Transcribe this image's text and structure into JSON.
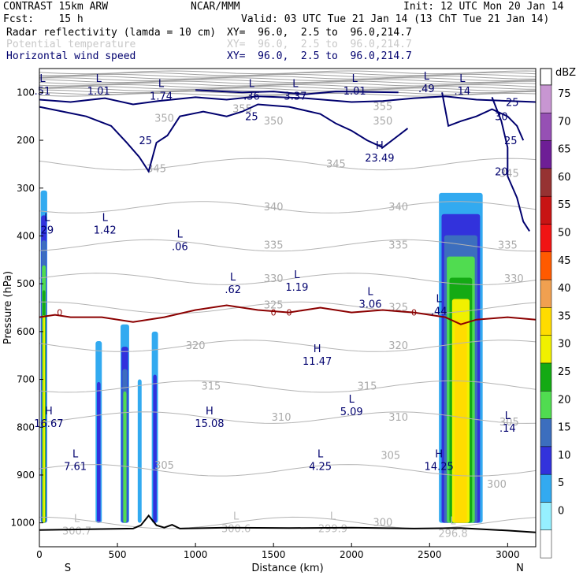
{
  "header": {
    "model": "CONTRAST 15km ARW",
    "org": "NCAR/MMM",
    "init": "Init: 12 UTC Mon 20 Jan 14",
    "fcst": "Fcst:    15 h",
    "valid": "Valid: 03 UTC Tue 21 Jan 14 (13 ChT Tue 21 Jan 14)",
    "fields": [
      {
        "name": "Radar reflectivity (lamda = 10 cm)",
        "xy": "XY=  96.0,  2.5 to  96.0,214.7",
        "color": "#000000"
      },
      {
        "name": "Potential temperature",
        "xy": "XY=  96.0,  2.5 to  96.0,214.7",
        "color": "#c8c8c8"
      },
      {
        "name": "Horizontal wind speed",
        "xy": "XY=  96.0,  2.5 to  96.0,214.7",
        "color": "#00006e"
      }
    ]
  },
  "chart_data": {
    "type": "heatmap",
    "subtype": "vertical cross-section",
    "xlabel": "Distance (km)",
    "ylabel": "Pressure (hPa)",
    "xlim": [
      0,
      3180
    ],
    "ylim": [
      1050,
      50
    ],
    "xticks": [
      0,
      500,
      1000,
      1500,
      2000,
      2500,
      3000
    ],
    "yticks": [
      100,
      200,
      300,
      400,
      500,
      600,
      700,
      800,
      900,
      1000
    ],
    "x_end_labels": {
      "left": "S",
      "right": "N"
    },
    "colorbar": {
      "unit": "dBZ",
      "levels": [
        75,
        70,
        65,
        60,
        55,
        50,
        45,
        40,
        35,
        30,
        25,
        20,
        15,
        10,
        5,
        0
      ],
      "colors": [
        "#c896d2",
        "#9650b4",
        "#6e1e96",
        "#963232",
        "#c81414",
        "#f01414",
        "#ff5a00",
        "#f0a050",
        "#ffdc00",
        "#f0f000",
        "#14aa14",
        "#50dc50",
        "#3c6ebe",
        "#3232dc",
        "#32aaf0",
        "#96f0ff",
        "#ffffff"
      ]
    },
    "reflectivity_cells": [
      {
        "x0": 8,
        "x1": 50,
        "ptop": 305,
        "pbottom": 1000,
        "max_dbz": 30
      },
      {
        "x0": 360,
        "x1": 400,
        "ptop": 620,
        "pbottom": 1000,
        "max_dbz": 10
      },
      {
        "x0": 520,
        "x1": 575,
        "ptop": 585,
        "pbottom": 1000,
        "max_dbz": 20
      },
      {
        "x0": 630,
        "x1": 655,
        "ptop": 700,
        "pbottom": 1000,
        "max_dbz": 5
      },
      {
        "x0": 720,
        "x1": 760,
        "ptop": 600,
        "pbottom": 1000,
        "max_dbz": 10
      },
      {
        "x0": 2560,
        "x1": 2840,
        "ptop": 310,
        "pbottom": 1000,
        "max_dbz": 35
      }
    ],
    "isotherm_labels": [
      {
        "text": "345",
        "x": 1900,
        "p": 250
      },
      {
        "text": "340",
        "x": 1500,
        "p": 340
      },
      {
        "text": "340",
        "x": 2300,
        "p": 340
      },
      {
        "text": "335",
        "x": 1500,
        "p": 420
      },
      {
        "text": "335",
        "x": 2300,
        "p": 420
      },
      {
        "text": "330",
        "x": 1500,
        "p": 490
      },
      {
        "text": "325",
        "x": 1500,
        "p": 545
      },
      {
        "text": "325",
        "x": 2300,
        "p": 550
      },
      {
        "text": "320",
        "x": 1000,
        "p": 630
      },
      {
        "text": "320",
        "x": 2300,
        "p": 630
      },
      {
        "text": "315",
        "x": 1100,
        "p": 715
      },
      {
        "text": "315",
        "x": 2100,
        "p": 715
      },
      {
        "text": "310",
        "x": 1550,
        "p": 780
      },
      {
        "text": "310",
        "x": 2300,
        "p": 780
      },
      {
        "text": "305",
        "x": 800,
        "p": 880
      },
      {
        "text": "305",
        "x": 2250,
        "p": 860
      },
      {
        "text": "300",
        "x": 2200,
        "p": 1000
      },
      {
        "text": "355",
        "x": 1300,
        "p": 135
      },
      {
        "text": "350",
        "x": 800,
        "p": 155
      },
      {
        "text": "350",
        "x": 1500,
        "p": 160
      },
      {
        "text": "355",
        "x": 2200,
        "p": 130
      },
      {
        "text": "350",
        "x": 2200,
        "p": 160
      },
      {
        "text": "345",
        "x": 750,
        "p": 260
      },
      {
        "text": "345",
        "x": 3010,
        "p": 270
      },
      {
        "text": "335",
        "x": 3000,
        "p": 420
      },
      {
        "text": "330",
        "x": 3040,
        "p": 490
      },
      {
        "text": "305",
        "x": 3010,
        "p": 790
      },
      {
        "text": "300",
        "x": 2930,
        "p": 920
      }
    ],
    "wind_labels": [
      {
        "text": "25",
        "x": 680,
        "p": 200
      },
      {
        "text": "25",
        "x": 1360,
        "p": 150
      },
      {
        "text": "25",
        "x": 3030,
        "p": 120
      },
      {
        "text": "30",
        "x": 2960,
        "p": 150
      },
      {
        "text": "25",
        "x": 3020,
        "p": 200
      },
      {
        "text": "20",
        "x": 2960,
        "p": 265
      }
    ],
    "freezing_level": {
      "label": "0",
      "x": [
        0,
        100,
        200,
        400,
        600,
        800,
        1000,
        1200,
        1400,
        1600,
        1800,
        2000,
        2200,
        2400,
        2600,
        2700,
        2800,
        3000,
        3180
      ],
      "p": [
        570,
        565,
        570,
        570,
        580,
        570,
        555,
        545,
        555,
        560,
        550,
        560,
        555,
        560,
        570,
        585,
        575,
        570,
        575
      ]
    },
    "minmax_labels": [
      {
        "kind": "L",
        "value": ".51",
        "x": 20,
        "p": 85
      },
      {
        "kind": "L",
        "value": "1.01",
        "x": 380,
        "p": 85
      },
      {
        "kind": "L",
        "value": "1.74",
        "x": 780,
        "p": 95
      },
      {
        "kind": "L",
        "value": ".36",
        "x": 1360,
        "p": 95
      },
      {
        "kind": "L",
        "value": "3.37",
        "x": 1640,
        "p": 95
      },
      {
        "kind": "L",
        "value": "1.01",
        "x": 2020,
        "p": 85
      },
      {
        "kind": "L",
        "value": ".49",
        "x": 2480,
        "p": 80
      },
      {
        "kind": "L",
        "value": ".14",
        "x": 2710,
        "p": 85
      },
      {
        "kind": "H",
        "value": "23.49",
        "x": 2180,
        "p": 225
      },
      {
        "kind": "L",
        "value": "29",
        "x": 50,
        "p": 375
      },
      {
        "kind": "L",
        "value": "1.42",
        "x": 420,
        "p": 375
      },
      {
        "kind": "L",
        "value": ".06",
        "x": 900,
        "p": 410
      },
      {
        "kind": "L",
        "value": ".62",
        "x": 1240,
        "p": 500
      },
      {
        "kind": "L",
        "value": "1.19",
        "x": 1650,
        "p": 495
      },
      {
        "kind": "L",
        "value": "3.06",
        "x": 2120,
        "p": 530
      },
      {
        "kind": "L",
        "value": ".44",
        "x": 2560,
        "p": 545
      },
      {
        "kind": "H",
        "value": "11.47",
        "x": 1780,
        "p": 650
      },
      {
        "kind": "L",
        "value": "5.09",
        "x": 2000,
        "p": 755
      },
      {
        "kind": "H",
        "value": "16.67",
        "x": 60,
        "p": 780
      },
      {
        "kind": "H",
        "value": "15.08",
        "x": 1090,
        "p": 780
      },
      {
        "kind": "L",
        "value": ".14",
        "x": 3000,
        "p": 790
      },
      {
        "kind": "L",
        "value": "7.61",
        "x": 230,
        "p": 870
      },
      {
        "kind": "L",
        "value": "4.25",
        "x": 1800,
        "p": 870
      },
      {
        "kind": "H",
        "value": "14.25",
        "x": 2560,
        "p": 870
      },
      {
        "kind": "L",
        "value": "300.7",
        "x": 240,
        "p": 1005
      },
      {
        "kind": "L",
        "value": "300.6",
        "x": 1260,
        "p": 1000
      },
      {
        "kind": "L",
        "value": "299.9",
        "x": 1880,
        "p": 1000
      },
      {
        "kind": "L",
        "value": "296.8",
        "x": 2650,
        "p": 1010
      }
    ]
  }
}
